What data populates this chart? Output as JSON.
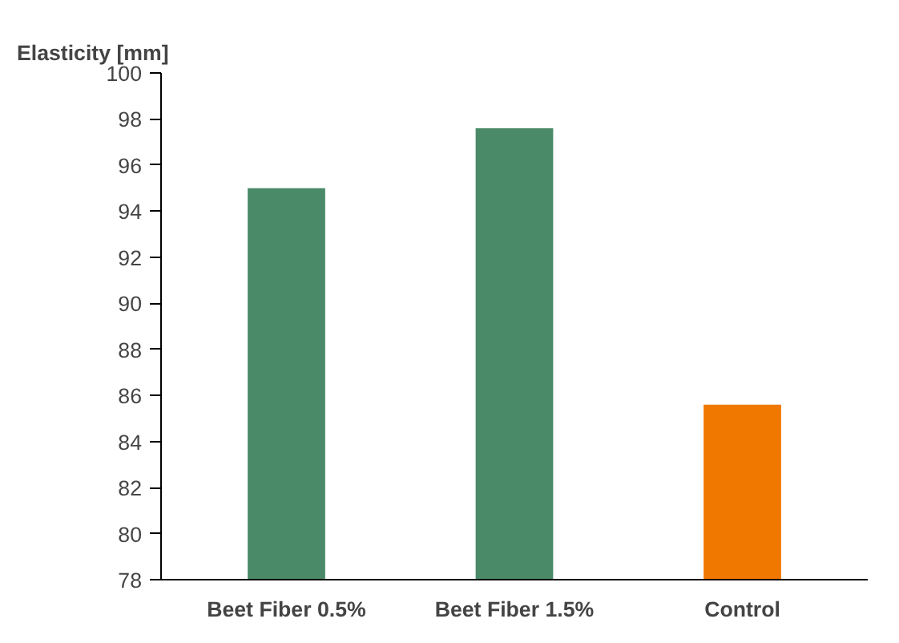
{
  "chart_data": {
    "type": "bar",
    "ylabel": "Elasticity [mm]",
    "categories": [
      "Beet Fiber 0.5%",
      "Beet Fiber 1.5%",
      "Control"
    ],
    "values": [
      95.0,
      97.6,
      85.6
    ],
    "colors": [
      "#4a8a68",
      "#4a8a68",
      "#f07800"
    ],
    "ylim": [
      78,
      100
    ],
    "yticks": [
      78,
      80,
      82,
      84,
      86,
      88,
      90,
      92,
      94,
      96,
      98,
      100
    ],
    "grid": false
  }
}
